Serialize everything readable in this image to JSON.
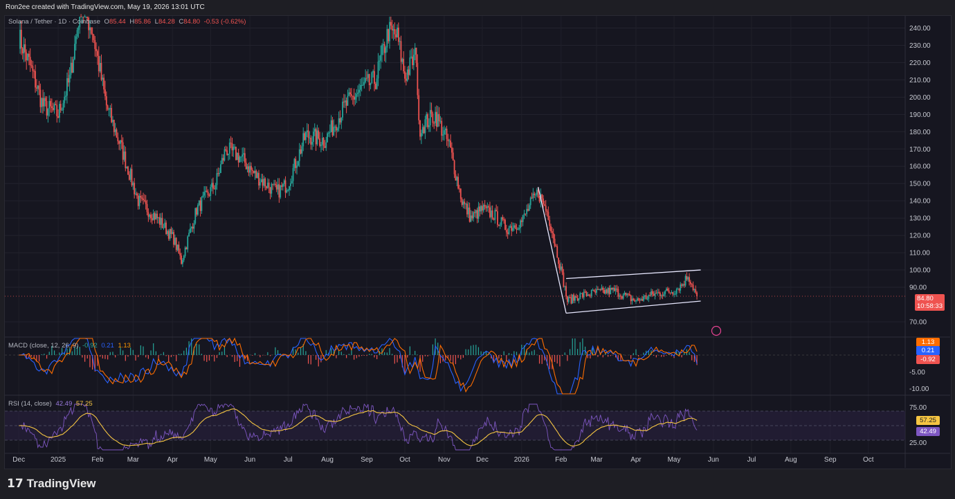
{
  "header": {
    "credit": "Ron2ee created with TradingView.com, May 19, 2026 13:01 UTC"
  },
  "main": {
    "symbol": "Solana / Tether · 1D · Coinbase",
    "o_label": "O",
    "o_value": "85.44",
    "h_label": "H",
    "h_value": "85.86",
    "l_label": "L",
    "l_value": "84.28",
    "c_label": "C",
    "c_value": "84.80",
    "change": "-0.53 (-0.62%)",
    "price_tag": "84.80",
    "countdown": "10:58:33"
  },
  "macd": {
    "label": "MACD (close, 12, 26, 9)",
    "v1": "-0.92",
    "v2": "0.21",
    "v3": "1.13",
    "tags": [
      "1.13",
      "0.21",
      "-0.92"
    ]
  },
  "rsi": {
    "label": "RSI (14, close)",
    "v1": "42.49",
    "v2": "57.25",
    "tags": [
      "57.25",
      "42.49"
    ]
  },
  "footer": {
    "brand": "TradingView"
  },
  "colors": {
    "up": "#26a69a",
    "down": "#ef5350",
    "macd": "#2962ff",
    "signal": "#ff6d00",
    "rsi": "#7e57c2",
    "rsi_ma": "#f5c542",
    "channel": "#e8e8ff"
  },
  "chart_data": [
    {
      "type": "candlestick",
      "title": "Solana / Tether · 1D · Coinbase",
      "y_ticks": [
        "240.00",
        "230.00",
        "220.00",
        "210.00",
        "200.00",
        "190.00",
        "180.00",
        "170.00",
        "160.00",
        "150.00",
        "140.00",
        "130.00",
        "120.00",
        "110.00",
        "100.00",
        "90.00",
        "70.00"
      ],
      "x_ticks": [
        "Dec",
        "2025",
        "Feb",
        "Mar",
        "Apr",
        "May",
        "Jun",
        "Jul",
        "Aug",
        "Sep",
        "Oct",
        "Nov",
        "Dec",
        "2026",
        "Feb",
        "Mar",
        "Apr",
        "May",
        "Jun",
        "Jul",
        "Aug",
        "Sep",
        "Oct"
      ],
      "ylim": [
        65,
        247
      ],
      "close_path_monthly": {
        "x": [
          "2024-12-01",
          "2024-12-10",
          "2024-12-20",
          "2025-01-01",
          "2025-01-10",
          "2025-01-19",
          "2025-01-28",
          "2025-02-08",
          "2025-02-20",
          "2025-03-05",
          "2025-03-20",
          "2025-04-02",
          "2025-04-08",
          "2025-04-20",
          "2025-05-05",
          "2025-05-13",
          "2025-05-25",
          "2025-06-05",
          "2025-06-22",
          "2025-07-01",
          "2025-07-15",
          "2025-07-30",
          "2025-08-15",
          "2025-08-28",
          "2025-09-08",
          "2025-09-18",
          "2025-09-25",
          "2025-10-01",
          "2025-10-10",
          "2025-10-12",
          "2025-10-25",
          "2025-11-05",
          "2025-11-15",
          "2025-11-22",
          "2025-12-01",
          "2025-12-10",
          "2025-12-20",
          "2026-01-01",
          "2026-01-08",
          "2026-01-14",
          "2026-01-22",
          "2026-02-01",
          "2026-02-06",
          "2026-02-15",
          "2026-03-01",
          "2026-03-15",
          "2026-04-01",
          "2026-04-15",
          "2026-05-01",
          "2026-05-08",
          "2026-05-12",
          "2026-05-19"
        ],
        "y": [
          235,
          218,
          195,
          190,
          210,
          255,
          238,
          195,
          170,
          140,
          130,
          118,
          105,
          135,
          150,
          170,
          165,
          155,
          145,
          150,
          178,
          175,
          195,
          205,
          210,
          238,
          235,
          212,
          225,
          182,
          190,
          172,
          140,
          130,
          135,
          132,
          124,
          128,
          138,
          145,
          132,
          100,
          82,
          85,
          87,
          88,
          82,
          86,
          88,
          92,
          97,
          84.8
        ]
      },
      "channel": {
        "upper": [
          {
            "x": "2026-02-05",
            "y": 95
          },
          {
            "x": "2026-05-22",
            "y": 100
          }
        ],
        "lower": [
          {
            "x": "2026-02-05",
            "y": 75
          },
          {
            "x": "2026-05-22",
            "y": 82
          }
        ]
      },
      "drop_line": [
        {
          "x": "2026-01-14",
          "y": 148
        },
        {
          "x": "2026-02-05",
          "y": 75
        }
      ],
      "last_close": 84.8
    },
    {
      "type": "line",
      "title": "MACD (close, 12, 26, 9)",
      "y_ticks": [
        "-5.00",
        "-10.00"
      ],
      "series": [
        {
          "name": "MACD"
        },
        {
          "name": "Signal"
        },
        {
          "name": "Histogram"
        }
      ],
      "last_values": [
        -0.92,
        0.21,
        1.13
      ]
    },
    {
      "type": "line",
      "title": "RSI (14, close)",
      "y_ticks": [
        "75.00",
        "25.00"
      ],
      "bands": [
        30,
        70
      ],
      "last_values": [
        42.49,
        57.25
      ]
    }
  ]
}
